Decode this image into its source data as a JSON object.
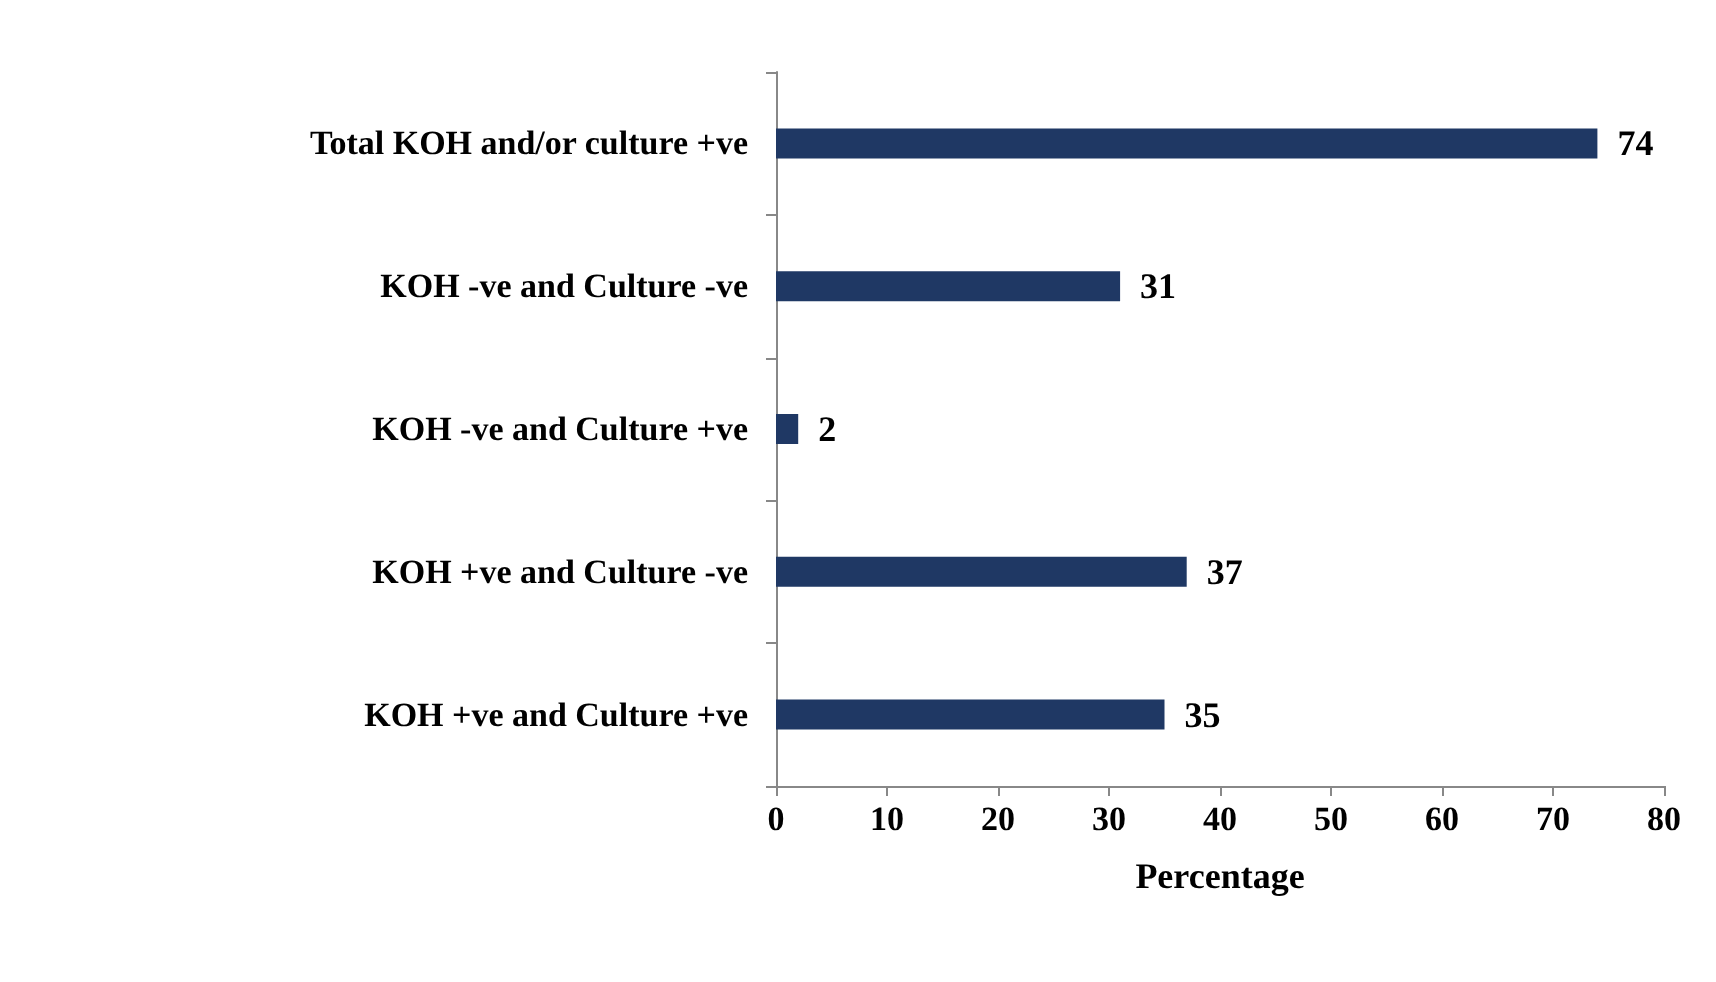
{
  "chart_data": {
    "type": "bar",
    "orientation": "horizontal",
    "categories": [
      "Total KOH and/or culture +ve",
      "KOH -ve and Culture -ve",
      "KOH -ve and Culture +ve",
      "KOH +ve and Culture -ve",
      "KOH +ve and Culture +ve"
    ],
    "values": [
      74,
      31,
      2,
      37,
      35
    ],
    "color": "#1f3864",
    "xlim": [
      0,
      80
    ],
    "xticks": [
      0,
      10,
      20,
      30,
      40,
      50,
      60,
      70,
      80
    ],
    "xlabel": "Percentage",
    "data_labels": true,
    "grid": false
  }
}
